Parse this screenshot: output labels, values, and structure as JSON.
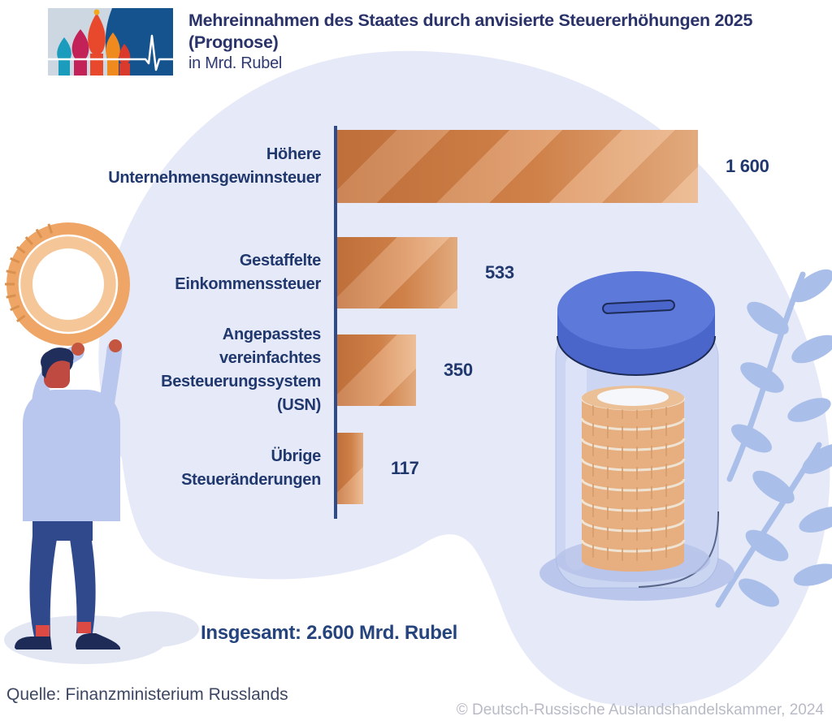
{
  "header": {
    "title_line1": "Mehreinnahmen des Staates durch anvisierte Steuererhöhungen 2025",
    "title_line2": "(Prognose)",
    "subtitle": "in Mrd. Rubel",
    "logo_name": "ahk-russland-cathedral-ecg-logo"
  },
  "chart_data": {
    "type": "bar",
    "orientation": "horizontal",
    "unit": "Mrd. Rubel",
    "xlim": [
      0,
      1600
    ],
    "xmax": 1600,
    "categories": [
      "Höhere Unternehmensgewinnsteuer",
      "Gestaffelte Einkommenssteuer",
      "Angepasstes vereinfachtes Besteuerungssystem (USN)",
      "Übrige Steueränderungen"
    ],
    "values": [
      1600,
      533,
      350,
      117
    ],
    "rows": [
      {
        "label": "Höhere\nUnternehmensgewinnsteuer",
        "value": 1600,
        "value_label": "1 600"
      },
      {
        "label": "Gestaffelte\nEinkommenssteuer",
        "value": 533,
        "value_label": "533"
      },
      {
        "label": "Angepasstes\nvereinfachtes\nBesteuerungssystem\n(USN)",
        "value": 350,
        "value_label": "350"
      },
      {
        "label": "Übrige\nSteueränderungen",
        "value": 117,
        "value_label": "117"
      }
    ],
    "total_label": "Insgesamt: 2.600 Mrd. Rubel",
    "legend": "none",
    "grid": false
  },
  "footer": {
    "source": "Quelle: Finanzministerium Russlands",
    "copyright": "© Deutsch-Russische Auslandshandelskammer, 2024"
  },
  "illustrations": {
    "left": "person-holding-big-coin",
    "right": "coin-jar-with-slot-lid-and-leaves"
  },
  "colors": {
    "text_navy": "#20386e",
    "title_navy": "#293269",
    "axis_navy": "#2f4b89",
    "bar_dark_orange": "#d0824a",
    "bar_light_orange": "#e2a273",
    "blob_lavender": "#e6e9f7",
    "leaf_periwinkle": "#a9bfe9",
    "lid_blue": "#5d79da",
    "coin_orange": "#eca466",
    "copyright_gray": "#b8bbc6"
  }
}
